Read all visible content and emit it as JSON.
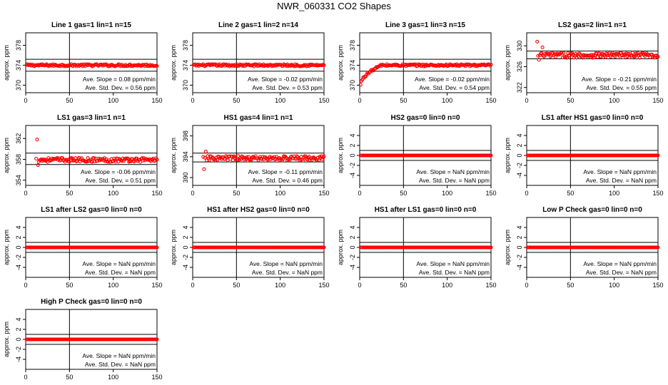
{
  "page_title": "NWR_060331  CO2 Shapes",
  "colors": {
    "points": "#ff0000",
    "lines": "#000000",
    "axis": "#000000"
  },
  "chart_data": [
    {
      "type": "scatter",
      "title": "Line 1 gas=1 lin=1 n=15",
      "ylabel": "approx. ppm",
      "xlim": [
        0,
        150
      ],
      "ylim": [
        368.5,
        380.5
      ],
      "xticks": [
        0,
        50,
        100,
        150
      ],
      "yticks": [
        370,
        374,
        378
      ],
      "hlines": [
        372.8,
        375.2
      ],
      "vline": 50,
      "x_range": [
        1,
        150
      ],
      "pattern": {
        "kind": "flat",
        "base": 374.0,
        "noise": 0.22
      },
      "slope_label": "Ave. Slope =  0.08  ppm/min",
      "sd_label": "Ave. Std. Dev. =  0.56  ppm"
    },
    {
      "type": "scatter",
      "title": "Line 2 gas=1 lin=2 n=14",
      "ylabel": "approx. ppm",
      "xlim": [
        0,
        150
      ],
      "ylim": [
        368.5,
        380.5
      ],
      "xticks": [
        0,
        50,
        100,
        150
      ],
      "yticks": [
        370,
        374,
        378
      ],
      "hlines": [
        372.8,
        375.2
      ],
      "vline": 50,
      "x_range": [
        1,
        150
      ],
      "pattern": {
        "kind": "flat",
        "base": 374.0,
        "noise": 0.22
      },
      "slope_label": "Ave. Slope =  -0.02  ppm/min",
      "sd_label": "Ave. Std. Dev. =  0.53  ppm"
    },
    {
      "type": "scatter",
      "title": "Line 3 gas=1 lin=3 n=15",
      "ylabel": "approx. ppm",
      "xlim": [
        0,
        150
      ],
      "ylim": [
        368.5,
        380.5
      ],
      "xticks": [
        0,
        50,
        100,
        150
      ],
      "yticks": [
        370,
        374,
        378
      ],
      "hlines": [
        372.8,
        375.2
      ],
      "vline": 50,
      "x_range": [
        1,
        150
      ],
      "pattern": {
        "kind": "rise",
        "start": 370.0,
        "end": 374.0,
        "rise_end_x": 25,
        "noise": 0.22
      },
      "slope_label": "Ave. Slope =  -0.02  ppm/min",
      "sd_label": "Ave. Std. Dev. =  0.54  ppm"
    },
    {
      "type": "scatter",
      "title": "LS2 gas=2 lin=1 n=1",
      "ylabel": "approx. ppm",
      "xlim": [
        0,
        150
      ],
      "ylim": [
        321,
        332.5
      ],
      "xticks": [
        0,
        50,
        100,
        150
      ],
      "yticks": [
        322,
        326,
        330
      ],
      "hlines": [
        327.5,
        329.0
      ],
      "vline": 50,
      "x_range": [
        12,
        150
      ],
      "pattern": {
        "kind": "noisy",
        "base": 328.2,
        "noise": 0.5,
        "spikes": [
          [
            12,
            330.8
          ],
          [
            18,
            329.7
          ],
          [
            14,
            327.3
          ]
        ]
      },
      "slope_label": "Ave. Slope =  -0.21  ppm/min",
      "sd_label": "Ave. Std. Dev. =  0.55  ppm"
    },
    {
      "type": "scatter",
      "title": "LS1 gas=3 lin=1 n=1",
      "ylabel": "approx. ppm",
      "xlim": [
        0,
        150
      ],
      "ylim": [
        353,
        364.5
      ],
      "xticks": [
        0,
        50,
        100,
        150
      ],
      "yticks": [
        354,
        358,
        362
      ],
      "hlines": [
        357.0,
        359.2
      ],
      "vline": 50,
      "x_range": [
        12,
        150
      ],
      "pattern": {
        "kind": "noisy",
        "base": 357.9,
        "noise": 0.4,
        "spikes": [
          [
            13,
            361.8
          ],
          [
            14,
            356.9
          ]
        ]
      },
      "slope_label": "Ave. Slope =  -0.06  ppm/min",
      "sd_label": "Ave. Std. Dev. =  0.51  ppm"
    },
    {
      "type": "scatter",
      "title": "HS1 gas=4 lin=1 n=1",
      "ylabel": "approx. ppm",
      "xlim": [
        0,
        150
      ],
      "ylim": [
        388.5,
        400
      ],
      "xticks": [
        0,
        50,
        100,
        150
      ],
      "yticks": [
        390,
        394,
        398
      ],
      "hlines": [
        393.0,
        394.7
      ],
      "vline": 50,
      "x_range": [
        12,
        150
      ],
      "pattern": {
        "kind": "noisy",
        "base": 393.7,
        "noise": 0.45,
        "spikes": [
          [
            13,
            391.6
          ],
          [
            15,
            395.0
          ]
        ]
      },
      "slope_label": "Ave. Slope =  -0.11  ppm/min",
      "sd_label": "Ave. Std. Dev. =  0.46  ppm"
    },
    {
      "type": "scatter",
      "title": "HS2 gas=0 lin=0 n=0",
      "ylabel": "approx. ppm",
      "xlim": [
        0,
        150
      ],
      "ylim": [
        -6,
        6
      ],
      "xticks": [
        0,
        50,
        100,
        150
      ],
      "yticks": [
        -4,
        -2,
        0,
        2,
        4
      ],
      "hlines": [
        -1,
        1
      ],
      "vline": 50,
      "x_range": [
        1,
        150
      ],
      "pattern": {
        "kind": "flat",
        "base": 0,
        "noise": 0
      },
      "slope_label": "Ave. Slope =  NaN  ppm/min",
      "sd_label": "Ave. Std. Dev. =  NaN  ppm"
    },
    {
      "type": "scatter",
      "title": "LS1 after HS1 gas=0 lin=0 n=0",
      "ylabel": "approx. ppm",
      "xlim": [
        0,
        150
      ],
      "ylim": [
        -6,
        6
      ],
      "xticks": [
        0,
        50,
        100,
        150
      ],
      "yticks": [
        -4,
        -2,
        0,
        2,
        4
      ],
      "hlines": [
        -1,
        1
      ],
      "vline": 50,
      "x_range": [
        1,
        150
      ],
      "pattern": {
        "kind": "flat",
        "base": 0,
        "noise": 0
      },
      "slope_label": "Ave. Slope =  NaN  ppm/min",
      "sd_label": "Ave. Std. Dev. =  NaN  ppm"
    },
    {
      "type": "scatter",
      "title": "LS1 after LS2 gas=0 lin=0 n=0",
      "ylabel": "approx. ppm",
      "xlim": [
        0,
        150
      ],
      "ylim": [
        -6,
        6
      ],
      "xticks": [
        0,
        50,
        100,
        150
      ],
      "yticks": [
        -4,
        -2,
        0,
        2,
        4
      ],
      "hlines": [
        -1,
        1
      ],
      "vline": 50,
      "x_range": [
        1,
        150
      ],
      "pattern": {
        "kind": "flat",
        "base": 0,
        "noise": 0
      },
      "slope_label": "Ave. Slope =  NaN  ppm/min",
      "sd_label": "Ave. Std. Dev. =  NaN  ppm"
    },
    {
      "type": "scatter",
      "title": "HS1 after HS2 gas=0 lin=0 n=0",
      "ylabel": "approx. ppm",
      "xlim": [
        0,
        150
      ],
      "ylim": [
        -6,
        6
      ],
      "xticks": [
        0,
        50,
        100,
        150
      ],
      "yticks": [
        -4,
        -2,
        0,
        2,
        4
      ],
      "hlines": [
        -1,
        1
      ],
      "vline": 50,
      "x_range": [
        1,
        150
      ],
      "pattern": {
        "kind": "flat",
        "base": 0,
        "noise": 0
      },
      "slope_label": "Ave. Slope =  NaN  ppm/min",
      "sd_label": "Ave. Std. Dev. =  NaN  ppm"
    },
    {
      "type": "scatter",
      "title": "HS1 after LS1 gas=0 lin=0 n=0",
      "ylabel": "approx. ppm",
      "xlim": [
        0,
        150
      ],
      "ylim": [
        -6,
        6
      ],
      "xticks": [
        0,
        50,
        100,
        150
      ],
      "yticks": [
        -4,
        -2,
        0,
        2,
        4
      ],
      "hlines": [
        -1,
        1
      ],
      "vline": 50,
      "x_range": [
        1,
        150
      ],
      "pattern": {
        "kind": "flat",
        "base": 0,
        "noise": 0
      },
      "slope_label": "Ave. Slope =  NaN  ppm/min",
      "sd_label": "Ave. Std. Dev. =  NaN  ppm"
    },
    {
      "type": "scatter",
      "title": "Low P Check gas=0 lin=0 n=0",
      "ylabel": "approx. ppm",
      "xlim": [
        0,
        150
      ],
      "ylim": [
        -6,
        6
      ],
      "xticks": [
        0,
        50,
        100,
        150
      ],
      "yticks": [
        -4,
        -2,
        0,
        2,
        4
      ],
      "hlines": [
        -1,
        1
      ],
      "vline": 50,
      "x_range": [
        1,
        150
      ],
      "pattern": {
        "kind": "flat",
        "base": 0,
        "noise": 0
      },
      "slope_label": "Ave. Slope =  NaN  ppm/min",
      "sd_label": "Ave. Std. Dev. =  NaN  ppm"
    },
    {
      "type": "scatter",
      "title": "High P Check gas=0 lin=0 n=0",
      "ylabel": "approx. ppm",
      "xlim": [
        0,
        150
      ],
      "ylim": [
        -6,
        6
      ],
      "xticks": [
        0,
        50,
        100,
        150
      ],
      "yticks": [
        -4,
        -2,
        0,
        2,
        4
      ],
      "hlines": [
        -1,
        1
      ],
      "vline": 50,
      "x_range": [
        1,
        150
      ],
      "pattern": {
        "kind": "flat",
        "base": 0,
        "noise": 0
      },
      "slope_label": "Ave. Slope =  NaN  ppm/min",
      "sd_label": "Ave. Std. Dev. =  NaN  ppm"
    }
  ]
}
